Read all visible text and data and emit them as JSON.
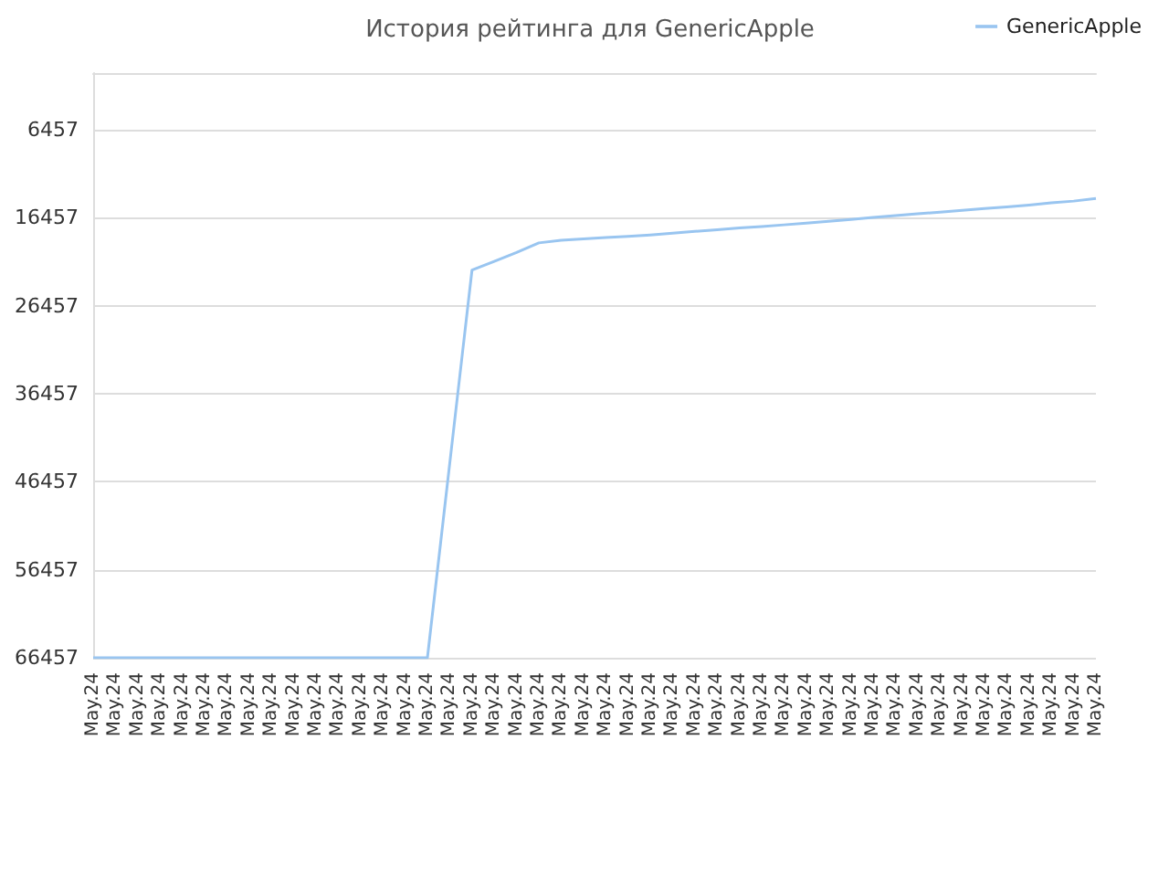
{
  "chart_data": {
    "type": "line",
    "title": "История рейтинга для GenericApple",
    "categories": [
      "May.24",
      "May.24",
      "May.24",
      "May.24",
      "May.24",
      "May.24",
      "May.24",
      "May.24",
      "May.24",
      "May.24",
      "May.24",
      "May.24",
      "May.24",
      "May.24",
      "May.24",
      "May.24",
      "May.24",
      "May.24",
      "May.24",
      "May.24",
      "May.24",
      "May.24",
      "May.24",
      "May.24",
      "May.24",
      "May.24",
      "May.24",
      "May.24",
      "May.24",
      "May.24",
      "May.24",
      "May.24",
      "May.24",
      "May.24",
      "May.24",
      "May.24",
      "May.24",
      "May.24",
      "May.24",
      "May.24",
      "May.24",
      "May.24",
      "May.24",
      "May.24",
      "May.24",
      "May.24"
    ],
    "series": [
      {
        "name": "GenericApple",
        "color": "#99c5f0",
        "values": [
          66457,
          66457,
          66457,
          66457,
          66457,
          66457,
          66457,
          66457,
          66457,
          66457,
          66457,
          66457,
          66457,
          66457,
          66457,
          66457,
          44400,
          22400,
          21400,
          20400,
          19300,
          19000,
          18850,
          18700,
          18550,
          18400,
          18200,
          18000,
          17800,
          17600,
          17450,
          17250,
          17050,
          16850,
          16650,
          16400,
          16200,
          16000,
          15800,
          15600,
          15400,
          15200,
          15000,
          14750,
          14550,
          14250
        ]
      }
    ],
    "ylim": [
      66457,
      0
    ],
    "yticks": [
      6457,
      16457,
      26457,
      36457,
      46457,
      56457,
      66457
    ],
    "grid": "y",
    "legend": "top right",
    "marker": "none",
    "line_style": "solid"
  }
}
